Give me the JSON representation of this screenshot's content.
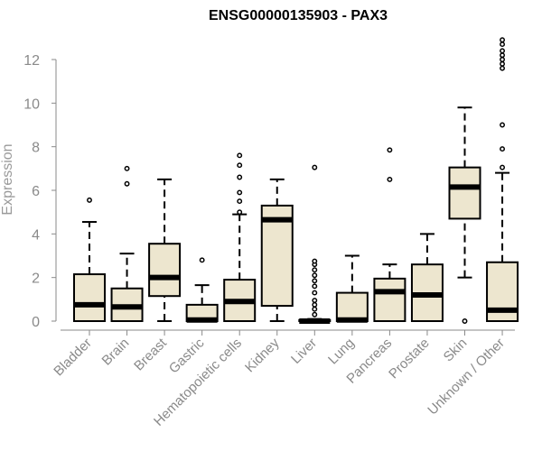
{
  "chart_data": {
    "type": "boxplot",
    "title": "ENSG00000135903 - PAX3",
    "xlabel": "",
    "ylabel": "Expression",
    "ylim": [
      0,
      12
    ],
    "yticks": [
      0,
      2,
      4,
      6,
      8,
      10,
      12
    ],
    "colors": {
      "box_fill": "#ede6cf",
      "stroke": "#000000",
      "axis": "#8a8a8a"
    },
    "categories": [
      "Bladder",
      "Brain",
      "Breast",
      "Gastric",
      "Hematopoietic cells",
      "Kidney",
      "Liver",
      "Lung",
      "Pancreas",
      "Prostate",
      "Skin",
      "Unknown / Other"
    ],
    "boxes": [
      {
        "name": "Bladder",
        "whisker_low": 0,
        "q1": 0,
        "median": 0.75,
        "q3": 2.15,
        "whisker_high": 4.55,
        "outliers": [
          5.55
        ]
      },
      {
        "name": "Brain",
        "whisker_low": 0,
        "q1": 0,
        "median": 0.65,
        "q3": 1.5,
        "whisker_high": 3.1,
        "outliers": [
          6.3,
          7.0
        ]
      },
      {
        "name": "Breast",
        "whisker_low": 0,
        "q1": 1.15,
        "median": 2.0,
        "q3": 3.55,
        "whisker_high": 6.5,
        "outliers": []
      },
      {
        "name": "Gastric",
        "whisker_low": 0,
        "q1": 0,
        "median": 0.05,
        "q3": 0.75,
        "whisker_high": 1.65,
        "outliers": [
          2.8
        ]
      },
      {
        "name": "Hematopoietic cells",
        "whisker_low": 0,
        "q1": 0,
        "median": 0.9,
        "q3": 1.9,
        "whisker_high": 4.9,
        "outliers": [
          5.0,
          5.5,
          5.9,
          6.6,
          7.15,
          7.6
        ]
      },
      {
        "name": "Kidney",
        "whisker_low": 0,
        "q1": 0.7,
        "median": 4.65,
        "q3": 5.3,
        "whisker_high": 6.5,
        "outliers": []
      },
      {
        "name": "Liver",
        "whisker_low": 0,
        "q1": 0,
        "median": 0,
        "q3": 0.05,
        "whisker_high": 0.1,
        "outliers": [
          0.3,
          0.55,
          0.75,
          0.95,
          1.3,
          1.6,
          1.85,
          2.1,
          2.35,
          2.6,
          2.75,
          7.05
        ]
      },
      {
        "name": "Lung",
        "whisker_low": 0,
        "q1": 0,
        "median": 0.05,
        "q3": 1.3,
        "whisker_high": 3.0,
        "outliers": []
      },
      {
        "name": "Pancreas",
        "whisker_low": 0,
        "q1": 0,
        "median": 1.35,
        "q3": 1.95,
        "whisker_high": 2.6,
        "outliers": [
          6.5,
          7.85
        ]
      },
      {
        "name": "Prostate",
        "whisker_low": 0,
        "q1": 0,
        "median": 1.2,
        "q3": 2.6,
        "whisker_high": 4.0,
        "outliers": []
      },
      {
        "name": "Skin",
        "whisker_low": 2.0,
        "q1": 4.7,
        "median": 6.15,
        "q3": 7.05,
        "whisker_high": 9.8,
        "outliers": [
          0
        ]
      },
      {
        "name": "Unknown / Other",
        "whisker_low": 0,
        "q1": 0,
        "median": 0.5,
        "q3": 2.7,
        "whisker_high": 6.8,
        "outliers": [
          7.05,
          7.9,
          9.0,
          11.6,
          11.8,
          12.0,
          12.2,
          12.4,
          12.7,
          12.9
        ]
      }
    ]
  }
}
